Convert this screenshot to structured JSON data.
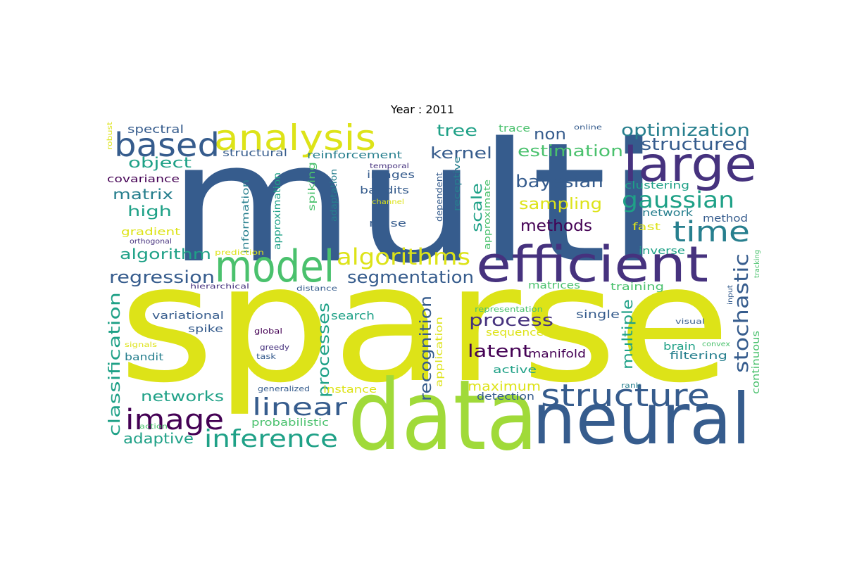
{
  "title": "Year : 2011",
  "colors": {
    "c0": "#440154",
    "c1": "#46327e",
    "c2": "#365c8d",
    "c3": "#277f8e",
    "c4": "#1fa187",
    "c5": "#4ac16d",
    "c6": "#a0da39",
    "c7": "#dde318"
  },
  "words": [
    {
      "text": "multi",
      "color": "c2"
    },
    {
      "text": "sparse",
      "color": "c7"
    },
    {
      "text": "data",
      "color": "c6"
    },
    {
      "text": "neural",
      "color": "c2"
    },
    {
      "text": "efficient",
      "color": "c1"
    },
    {
      "text": "large",
      "color": "c1"
    },
    {
      "text": "model",
      "color": "c5"
    },
    {
      "text": "analysis",
      "color": "c7"
    },
    {
      "text": "based",
      "color": "c2"
    },
    {
      "text": "structure",
      "color": "c2"
    },
    {
      "text": "image",
      "color": "c0"
    },
    {
      "text": "time",
      "color": "c3"
    },
    {
      "text": "linear",
      "color": "c2"
    },
    {
      "text": "inference",
      "color": "c4"
    },
    {
      "text": "algorithms",
      "color": "c7"
    },
    {
      "text": "gaussian",
      "color": "c4"
    },
    {
      "text": "optimization",
      "color": "c3"
    },
    {
      "text": "structured",
      "color": "c2"
    },
    {
      "text": "stochastic",
      "color": "c2"
    },
    {
      "text": "segmentation",
      "color": "c2"
    },
    {
      "text": "regression",
      "color": "c2"
    },
    {
      "text": "classification",
      "color": "c4"
    },
    {
      "text": "processes",
      "color": "c4"
    },
    {
      "text": "recognition",
      "color": "c2"
    },
    {
      "text": "multiple",
      "color": "c4"
    },
    {
      "text": "process",
      "color": "c1"
    },
    {
      "text": "latent",
      "color": "c0"
    },
    {
      "text": "bayesian",
      "color": "c2"
    },
    {
      "text": "estimation",
      "color": "c5"
    },
    {
      "text": "kernel",
      "color": "c2"
    },
    {
      "text": "tree",
      "color": "c4"
    },
    {
      "text": "non",
      "color": "c2"
    },
    {
      "text": "methods",
      "color": "c0"
    },
    {
      "text": "sampling",
      "color": "c7"
    },
    {
      "text": "scale",
      "color": "c4"
    },
    {
      "text": "algorithm",
      "color": "c4"
    },
    {
      "text": "matrix",
      "color": "c3"
    },
    {
      "text": "high",
      "color": "c4"
    },
    {
      "text": "object",
      "color": "c4"
    },
    {
      "text": "networks",
      "color": "c4"
    },
    {
      "text": "adaptive",
      "color": "c4"
    },
    {
      "text": "maximum",
      "color": "c7"
    },
    {
      "text": "manifold",
      "color": "c0"
    },
    {
      "text": "spectral",
      "color": "c2"
    },
    {
      "text": "covariance",
      "color": "c0"
    },
    {
      "text": "gradient",
      "color": "c7"
    },
    {
      "text": "orthogonal",
      "color": "c1"
    },
    {
      "text": "structural",
      "color": "c2"
    },
    {
      "text": "reinforcement",
      "color": "c3"
    },
    {
      "text": "images",
      "color": "c2"
    },
    {
      "text": "bandits",
      "color": "c2"
    },
    {
      "text": "noise",
      "color": "c2"
    },
    {
      "text": "information",
      "color": "c3"
    },
    {
      "text": "approximation",
      "color": "c4"
    },
    {
      "text": "spiking",
      "color": "c5"
    },
    {
      "text": "adaptation",
      "color": "c3"
    },
    {
      "text": "channel",
      "color": "c7"
    },
    {
      "text": "dependent",
      "color": "c2"
    },
    {
      "text": "receptive",
      "color": "c3"
    },
    {
      "text": "approximate",
      "color": "c5"
    },
    {
      "text": "trace",
      "color": "c5"
    },
    {
      "text": "online",
      "color": "c2"
    },
    {
      "text": "clustering",
      "color": "c4"
    },
    {
      "text": "network",
      "color": "c3"
    },
    {
      "text": "method",
      "color": "c2"
    },
    {
      "text": "fast",
      "color": "c7"
    },
    {
      "text": "inverse",
      "color": "c4"
    },
    {
      "text": "training",
      "color": "c5"
    },
    {
      "text": "matrices",
      "color": "c5"
    },
    {
      "text": "tracking",
      "color": "c5"
    },
    {
      "text": "input",
      "color": "c2"
    },
    {
      "text": "continuous",
      "color": "c5"
    },
    {
      "text": "filtering",
      "color": "c3"
    },
    {
      "text": "brain",
      "color": "c4"
    },
    {
      "text": "convex",
      "color": "c5"
    },
    {
      "text": "visual",
      "color": "c2"
    },
    {
      "text": "rank",
      "color": "c3"
    },
    {
      "text": "single",
      "color": "c2"
    },
    {
      "text": "representation",
      "color": "c5"
    },
    {
      "text": "sequence",
      "color": "c7"
    },
    {
      "text": "active",
      "color": "c4"
    },
    {
      "text": "detection",
      "color": "c2"
    },
    {
      "text": "application",
      "color": "c7"
    },
    {
      "text": "search",
      "color": "c4"
    },
    {
      "text": "instance",
      "color": "c7"
    },
    {
      "text": "probabilistic",
      "color": "c5"
    },
    {
      "text": "generalized",
      "color": "c2"
    },
    {
      "text": "variational",
      "color": "c2"
    },
    {
      "text": "spike",
      "color": "c2"
    },
    {
      "text": "bandit",
      "color": "c3"
    },
    {
      "text": "signals",
      "color": "c7"
    },
    {
      "text": "action",
      "color": "c5"
    },
    {
      "text": "global",
      "color": "c0"
    },
    {
      "text": "greedy",
      "color": "c1"
    },
    {
      "text": "task",
      "color": "c2"
    },
    {
      "text": "temporal",
      "color": "c1"
    },
    {
      "text": "distance",
      "color": "c2"
    },
    {
      "text": "hierarchical",
      "color": "c1"
    },
    {
      "text": "prediction",
      "color": "c7"
    },
    {
      "text": "robust",
      "color": "c7"
    }
  ]
}
